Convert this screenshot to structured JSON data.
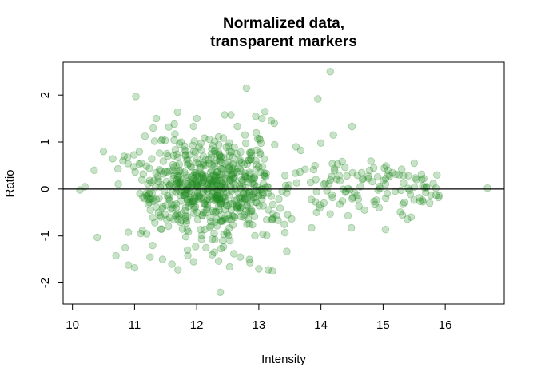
{
  "chart_data": {
    "type": "scatter",
    "title_lines": [
      "Normalized data,",
      "transparent markers"
    ],
    "xlabel": "Intensity",
    "ylabel": "Ratio",
    "xlim": [
      9.85,
      16.95
    ],
    "ylim": [
      -2.45,
      2.7
    ],
    "x_ticks": [
      10,
      11,
      12,
      13,
      14,
      15,
      16
    ],
    "y_ticks": [
      -2,
      -1,
      0,
      1,
      2
    ],
    "reference_line_y": 0,
    "marker_color": "#228B22",
    "marker_fill_opacity": 0.25,
    "marker_stroke_opacity": 0.35,
    "outliers": [
      [
        10.12,
        -0.02
      ],
      [
        10.4,
        -1.03
      ],
      [
        10.5,
        0.8
      ],
      [
        10.7,
        -1.42
      ],
      [
        10.85,
        -1.25
      ],
      [
        10.9,
        -1.62
      ],
      [
        11.0,
        -1.68
      ],
      [
        11.02,
        1.97
      ],
      [
        11.1,
        -0.95
      ],
      [
        11.25,
        -1.45
      ],
      [
        11.3,
        1.3
      ],
      [
        11.35,
        1.5
      ],
      [
        11.45,
        -1.5
      ],
      [
        11.55,
        1.32
      ],
      [
        11.6,
        -1.6
      ],
      [
        11.7,
        -1.72
      ],
      [
        11.85,
        -1.3
      ],
      [
        11.95,
        -1.55
      ],
      [
        12.0,
        1.5
      ],
      [
        12.15,
        -1.25
      ],
      [
        12.25,
        -1.4
      ],
      [
        12.38,
        -2.2
      ],
      [
        12.45,
        1.58
      ],
      [
        12.55,
        1.58
      ],
      [
        12.6,
        -1.38
      ],
      [
        12.7,
        -1.45
      ],
      [
        12.8,
        2.15
      ],
      [
        12.85,
        -1.5
      ],
      [
        12.95,
        1.55
      ],
      [
        13.0,
        -1.7
      ],
      [
        13.05,
        1.5
      ],
      [
        13.1,
        1.65
      ],
      [
        13.15,
        -1.72
      ],
      [
        13.2,
        1.45
      ],
      [
        13.22,
        -1.75
      ],
      [
        13.25,
        1.4
      ],
      [
        13.45,
        -1.33
      ],
      [
        13.95,
        1.92
      ],
      [
        14.15,
        2.5
      ],
      [
        14.2,
        1.15
      ],
      [
        14.5,
        1.33
      ],
      [
        15.0,
        0.18
      ],
      [
        15.15,
        0.35
      ],
      [
        15.3,
        0.42
      ],
      [
        15.45,
        -0.6
      ],
      [
        15.5,
        0.55
      ],
      [
        15.7,
        0.05
      ],
      [
        15.75,
        -0.3
      ],
      [
        15.85,
        0.02
      ],
      [
        16.68,
        0.02
      ],
      [
        14.0,
        0.98
      ],
      [
        13.6,
        0.9
      ],
      [
        10.35,
        0.4
      ],
      [
        10.2,
        0.05
      ],
      [
        14.7,
        -0.45
      ],
      [
        14.85,
        0.45
      ]
    ]
  }
}
